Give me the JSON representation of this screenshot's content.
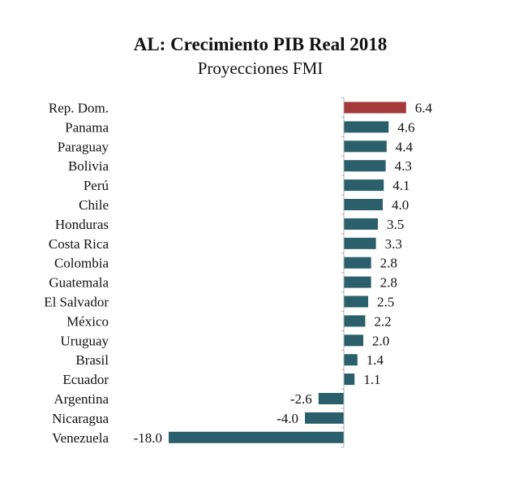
{
  "chart_data": {
    "type": "bar",
    "orientation": "horizontal",
    "title": "AL: Crecimiento PIB Real 2018",
    "subtitle": "Proyecciones FMI",
    "categories": [
      "Rep. Dom.",
      "Panama",
      "Paraguay",
      "Bolivia",
      "Perú",
      "Chile",
      "Honduras",
      "Costa Rica",
      "Colombia",
      "Guatemala",
      "El Salvador",
      "México",
      "Uruguay",
      "Brasil",
      "Ecuador",
      "Argentina",
      "Nicaragua",
      "Venezuela"
    ],
    "values": [
      6.4,
      4.6,
      4.4,
      4.3,
      4.1,
      4.0,
      3.5,
      3.3,
      2.8,
      2.8,
      2.5,
      2.2,
      2.0,
      1.4,
      1.1,
      -2.6,
      -4.0,
      -18.0
    ],
    "value_labels": [
      "6.4",
      "4.6",
      "4.4",
      "4.3",
      "4.1",
      "4.0",
      "3.5",
      "3.3",
      "2.8",
      "2.8",
      "2.5",
      "2.2",
      "2.0",
      "1.4",
      "1.1",
      "-2.6",
      "-4.0",
      "-18.0"
    ],
    "colors": {
      "highlight": "#a43a3c",
      "default": "#2a5f6b",
      "axis": "#b0b0b0"
    },
    "highlight_index": 0,
    "grid": false,
    "legend": "none"
  }
}
